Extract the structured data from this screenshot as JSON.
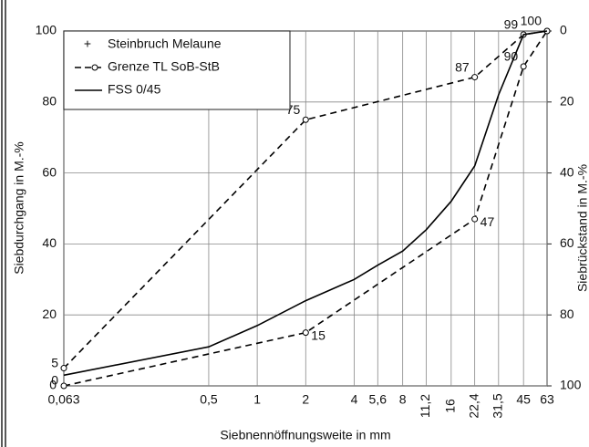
{
  "chart_data": {
    "type": "line",
    "y_label": "Siebdurchgang  in M.-%",
    "y2_label": "Siebrückstand  in M.-%",
    "x_label": "Siebnennöffnungsweite in mm",
    "xscale": "log",
    "xlim": [
      0.063,
      63
    ],
    "xticks": [
      {
        "value": 0.063,
        "label": "0,063"
      },
      {
        "value": 0.5,
        "label": "0,5"
      },
      1,
      2,
      4,
      {
        "value": 5.6,
        "label": "5,6"
      },
      8,
      {
        "value": 11.2,
        "label": "11,2"
      },
      16,
      {
        "value": 22.4,
        "label": "22,4"
      },
      {
        "value": 31.5,
        "label": "31,5"
      },
      45,
      63
    ],
    "ylim": [
      0,
      100
    ],
    "yticks": [
      0,
      20,
      40,
      60,
      80,
      100
    ],
    "y2lim": [
      100,
      0
    ],
    "y2ticks": [
      0,
      20,
      40,
      60,
      80,
      100
    ],
    "grid": true,
    "legend": "upper left",
    "series": [
      {
        "name": "Steinbruch Melaune",
        "color": "#000000",
        "marker": "+"
      },
      {
        "name": "Grenze TL SoB-StB",
        "color": "#000000",
        "dash": true,
        "marker": "o",
        "curves": [
          {
            "x": [
              0.063,
              2,
              22.4,
              45,
              63
            ],
            "values": [
              5,
              75,
              87,
              99,
              100
            ]
          },
          {
            "x": [
              0.063,
              2,
              22.4,
              45,
              63
            ],
            "values": [
              0,
              15,
              47,
              90,
              100
            ]
          }
        ]
      },
      {
        "name": "FSS 0/45",
        "color": "#000000",
        "x": [
          0.063,
          0.5,
          1,
          2,
          4,
          5.6,
          8,
          11.2,
          16,
          22.4,
          31.5,
          45,
          63
        ],
        "values": [
          3,
          11,
          17,
          24,
          30,
          34,
          38,
          44,
          52,
          62,
          82,
          99,
          100
        ]
      }
    ]
  }
}
